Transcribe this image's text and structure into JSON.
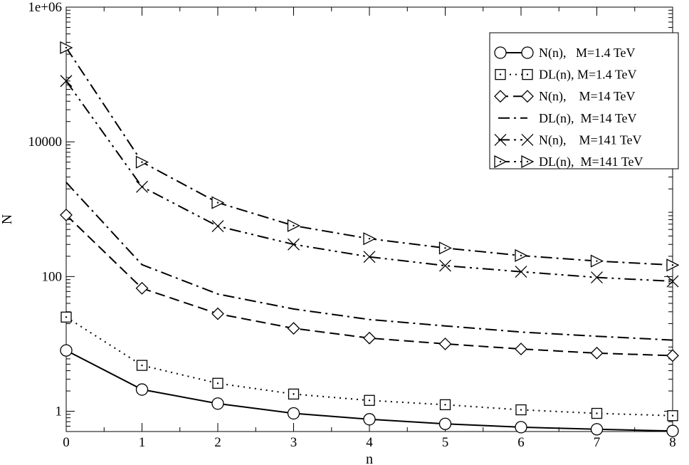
{
  "chart_data": {
    "type": "line",
    "title": "",
    "xlabel": "n",
    "ylabel": "N",
    "x_scale": "linear",
    "y_scale": "log",
    "xlim": [
      0,
      8
    ],
    "ylim": [
      0.5,
      1000000
    ],
    "x_ticks": [
      {
        "value": 0,
        "label": "0"
      },
      {
        "value": 1,
        "label": "1"
      },
      {
        "value": 2,
        "label": "2"
      },
      {
        "value": 3,
        "label": "3"
      },
      {
        "value": 4,
        "label": "4"
      },
      {
        "value": 5,
        "label": "5"
      },
      {
        "value": 6,
        "label": "6"
      },
      {
        "value": 7,
        "label": "7"
      },
      {
        "value": 8,
        "label": "8"
      }
    ],
    "y_ticks": [
      {
        "value": 1,
        "label": "1"
      },
      {
        "value": 100,
        "label": "100"
      },
      {
        "value": 10000,
        "label": "10000"
      },
      {
        "value": 1000000,
        "label": "1e+06"
      }
    ],
    "grid": false,
    "legend_position": "top-right",
    "x": [
      0,
      1,
      2,
      3,
      4,
      5,
      6,
      7,
      8
    ],
    "series": [
      {
        "name": "N(n),   M=1.4 TeV",
        "values": [
          8.0,
          2.1,
          1.3,
          0.93,
          0.76,
          0.65,
          0.58,
          0.54,
          0.51
        ],
        "line": "solid",
        "marker": "circle"
      },
      {
        "name": "DL(n), M=1.4 TeV",
        "values": [
          25,
          4.8,
          2.6,
          1.8,
          1.45,
          1.25,
          1.05,
          0.93,
          0.86
        ],
        "line": "dotted",
        "marker": "square"
      },
      {
        "name": "N(n),    M=14 TeV",
        "values": [
          820,
          67,
          28,
          17,
          12.2,
          10.0,
          8.4,
          7.3,
          6.7
        ],
        "line": "dashed",
        "marker": "diamond"
      },
      {
        "name": "DL(n),  M=14 TeV",
        "values": [
          2500,
          150,
          55,
          33,
          23,
          18.5,
          15.0,
          13.0,
          11.4
        ],
        "line": "dashdot",
        "marker": "none"
      },
      {
        "name": "N(n),    M=141 TeV",
        "values": [
          80000,
          2150,
          560,
          300,
          196,
          145,
          118,
          97,
          85
        ],
        "line": "dashdotdot",
        "marker": "x"
      },
      {
        "name": "DL(n),  M=141 TeV",
        "values": [
          250000,
          5000,
          1250,
          570,
          365,
          265,
          205,
          170,
          148
        ],
        "line": "dashdot",
        "marker": "triangle-right"
      }
    ]
  }
}
